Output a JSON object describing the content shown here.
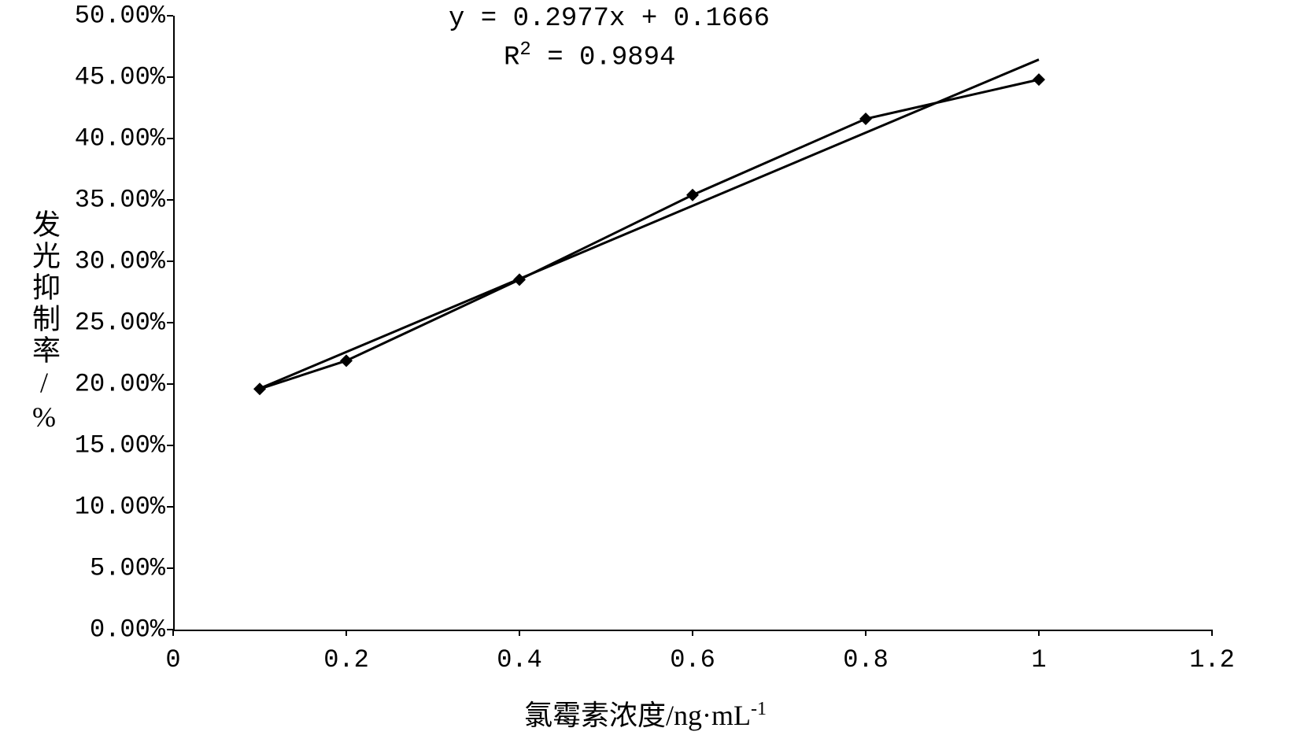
{
  "chart": {
    "type": "line",
    "background_color": "#ffffff",
    "axis_color": "#000000",
    "text_color": "#000000",
    "line_color": "#000000",
    "marker_color": "#000000",
    "marker_style": "diamond",
    "marker_size": 16,
    "line_width": 3,
    "trendline_width": 3,
    "equation": "y = 0.2977x + 0.1666",
    "r_squared_label": "R",
    "r_squared_sup": "2",
    "r_squared_rest": " = 0.9894",
    "equation_fontsize": 34,
    "y_axis": {
      "title_prefix": "发光抑制率",
      "title_slash": "/",
      "title_suffix": "%",
      "min": 0.0,
      "max": 0.5,
      "tick_step": 0.05,
      "ticks": [
        "0.00%",
        "5.00%",
        "10.00%",
        "15.00%",
        "20.00%",
        "25.00%",
        "30.00%",
        "35.00%",
        "40.00%",
        "45.00%",
        "50.00%"
      ],
      "label_fontsize": 32,
      "title_fontsize": 36
    },
    "x_axis": {
      "title_prefix": "氯霉素浓度/ng",
      "title_dot": "·",
      "title_unit": "mL",
      "title_sup": "-1",
      "min": 0,
      "max": 1.2,
      "tick_step": 0.2,
      "ticks": [
        "0",
        "0.2",
        "0.4",
        "0.6",
        "0.8",
        "1",
        "1.2"
      ],
      "label_fontsize": 32,
      "title_fontsize": 36
    },
    "data_points": [
      {
        "x": 0.1,
        "y": 0.196
      },
      {
        "x": 0.2,
        "y": 0.219
      },
      {
        "x": 0.4,
        "y": 0.285
      },
      {
        "x": 0.6,
        "y": 0.354
      },
      {
        "x": 0.8,
        "y": 0.416
      },
      {
        "x": 1.0,
        "y": 0.448
      }
    ],
    "trendline": {
      "slope": 0.2977,
      "intercept": 0.1666,
      "x_start": 0.1,
      "x_end": 1.0
    }
  }
}
